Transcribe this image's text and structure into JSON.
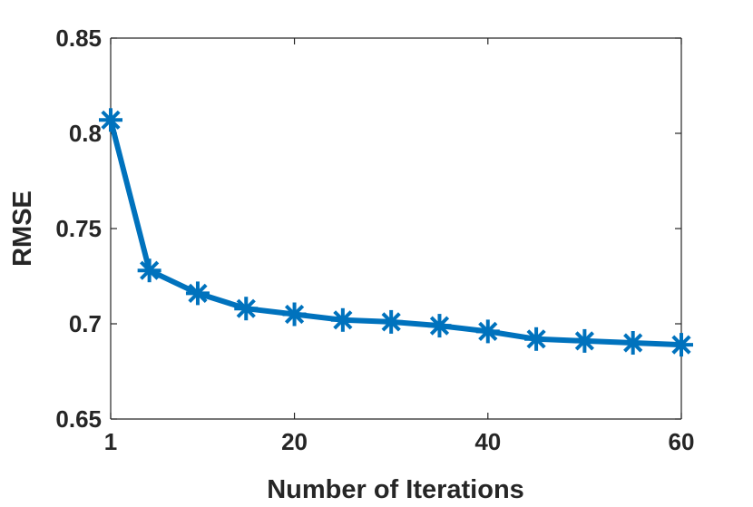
{
  "chart_data": {
    "type": "line",
    "title": "",
    "xlabel": "Number of Iterations",
    "ylabel": "RMSE",
    "xlim": [
      1,
      60
    ],
    "ylim": [
      0.65,
      0.85
    ],
    "xticks": [
      1,
      20,
      40,
      60
    ],
    "xtick_labels": [
      "1",
      "20",
      "40",
      "60"
    ],
    "yticks": [
      0.65,
      0.7,
      0.75,
      0.8,
      0.85
    ],
    "ytick_labels": [
      "0.65",
      "0.7",
      "0.75",
      "0.8",
      "0.85"
    ],
    "grid": false,
    "legend": "none",
    "series": [
      {
        "color": "#0072BD",
        "marker": "asterisk",
        "x": [
          1,
          5,
          10,
          15,
          20,
          25,
          30,
          35,
          40,
          45,
          50,
          55,
          60
        ],
        "y": [
          0.807,
          0.728,
          0.716,
          0.708,
          0.705,
          0.702,
          0.701,
          0.699,
          0.696,
          0.692,
          0.691,
          0.69,
          0.689
        ]
      }
    ]
  }
}
